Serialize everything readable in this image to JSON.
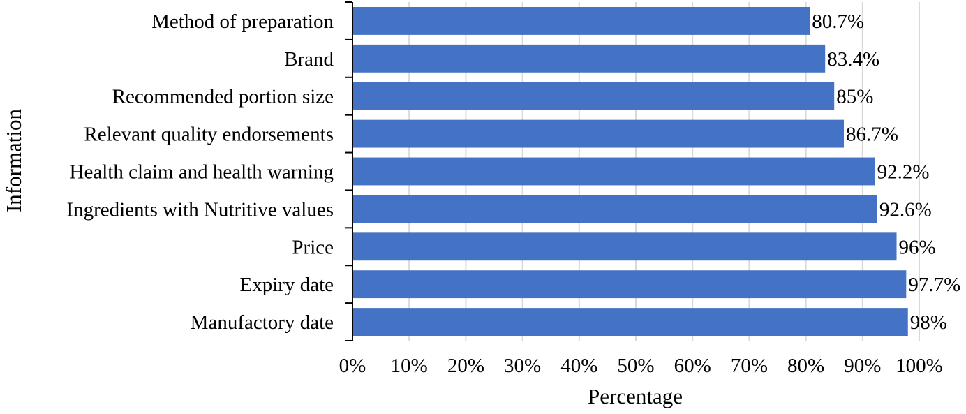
{
  "chart_data": {
    "type": "bar",
    "orientation": "horizontal",
    "title": "",
    "xlabel": "Percentage",
    "ylabel": "Information",
    "xlim": [
      0,
      100
    ],
    "x_tick_values": [
      0,
      10,
      20,
      30,
      40,
      50,
      60,
      70,
      80,
      90,
      100
    ],
    "x_tick_labels": [
      "0%",
      "10%",
      "20%",
      "30%",
      "40%",
      "50%",
      "60%",
      "70%",
      "80%",
      "90%",
      "100%"
    ],
    "grid": "vertical",
    "legend": "none",
    "categories": [
      "Method of preparation",
      "Brand",
      "Recommended portion size",
      "Relevant quality endorsements",
      "Health claim and health warning",
      "Ingredients with Nutritive values",
      "Price",
      "Expiry date",
      "Manufactory date"
    ],
    "values": [
      80.7,
      83.4,
      85,
      86.7,
      92.2,
      92.6,
      96,
      97.7,
      98
    ],
    "data_labels": [
      "80.7%",
      "83.4%",
      "85%",
      "86.7%",
      "92.2%",
      "92.6%",
      "96%",
      "97.7%",
      "98%"
    ],
    "bar_color": "#4472C4",
    "grid_color": "#D9D9D9",
    "axis_color": "#000000"
  }
}
